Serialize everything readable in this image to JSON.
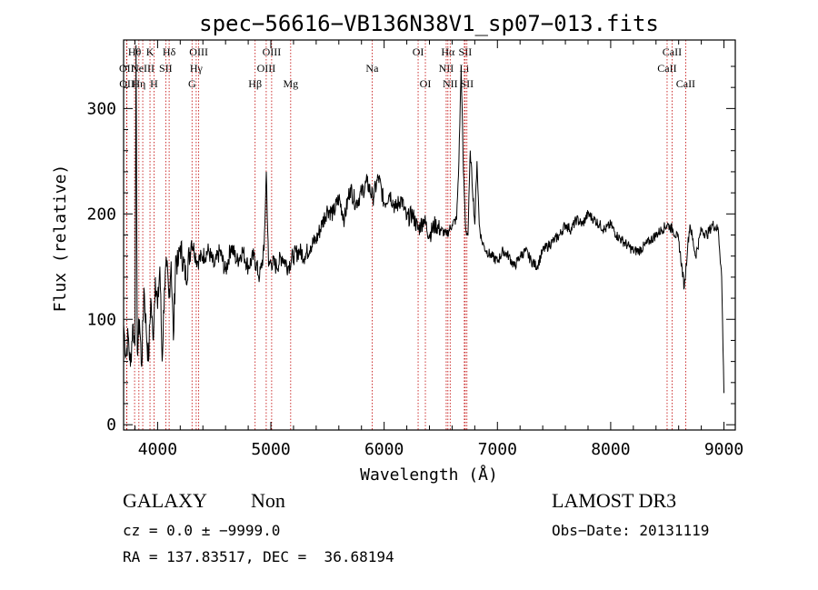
{
  "chart_data": {
    "type": "line",
    "title": "spec−56616−VB136N38V1_sp07−013.fits",
    "xlabel": "Wavelength (Å)",
    "ylabel": "Flux (relative)",
    "xlim": [
      3700,
      9100
    ],
    "ylim": [
      -5,
      365
    ],
    "xticks": [
      4000,
      5000,
      6000,
      7000,
      8000,
      9000
    ],
    "yticks": [
      0,
      100,
      200,
      300
    ],
    "series": [
      {
        "name": "spectrum",
        "x": [
          3700,
          3720,
          3740,
          3760,
          3780,
          3800,
          3810,
          3820,
          3840,
          3860,
          3880,
          3900,
          3920,
          3940,
          3960,
          3980,
          4000,
          4020,
          4040,
          4060,
          4080,
          4100,
          4120,
          4140,
          4160,
          4180,
          4200,
          4250,
          4300,
          4350,
          4400,
          4450,
          4500,
          4550,
          4600,
          4650,
          4700,
          4750,
          4800,
          4850,
          4900,
          4940,
          4960,
          4980,
          5000,
          5050,
          5100,
          5150,
          5200,
          5250,
          5300,
          5350,
          5400,
          5450,
          5500,
          5550,
          5600,
          5650,
          5700,
          5750,
          5800,
          5850,
          5900,
          5950,
          6000,
          6050,
          6100,
          6150,
          6200,
          6250,
          6300,
          6350,
          6400,
          6450,
          6500,
          6550,
          6600,
          6640,
          6660,
          6680,
          6700,
          6720,
          6740,
          6760,
          6800,
          6820,
          6840,
          6860,
          6880,
          6900,
          6950,
          7000,
          7050,
          7100,
          7150,
          7200,
          7250,
          7300,
          7350,
          7400,
          7450,
          7500,
          7550,
          7600,
          7650,
          7700,
          7750,
          7800,
          7850,
          7900,
          7950,
          8000,
          8050,
          8100,
          8150,
          8200,
          8250,
          8300,
          8350,
          8400,
          8450,
          8500,
          8550,
          8600,
          8650,
          8680,
          8700,
          8750,
          8800,
          8850,
          8900,
          8950,
          8980,
          9000
        ],
        "y": [
          95,
          65,
          85,
          55,
          95,
          75,
          360,
          70,
          100,
          55,
          130,
          90,
          60,
          120,
          80,
          140,
          110,
          150,
          60,
          130,
          150,
          120,
          155,
          80,
          160,
          150,
          170,
          140,
          175,
          155,
          160,
          165,
          150,
          165,
          145,
          170,
          155,
          165,
          150,
          160,
          140,
          165,
          240,
          150,
          155,
          150,
          160,
          150,
          160,
          165,
          160,
          170,
          175,
          190,
          205,
          200,
          215,
          195,
          225,
          210,
          220,
          230,
          215,
          235,
          210,
          220,
          205,
          215,
          195,
          200,
          185,
          195,
          180,
          190,
          185,
          180,
          190,
          195,
          250,
          340,
          240,
          185,
          180,
          260,
          190,
          250,
          190,
          175,
          170,
          165,
          160,
          155,
          165,
          160,
          150,
          160,
          165,
          155,
          150,
          165,
          170,
          175,
          180,
          190,
          185,
          195,
          190,
          200,
          195,
          190,
          185,
          190,
          180,
          175,
          170,
          165,
          165,
          170,
          175,
          180,
          185,
          190,
          185,
          175,
          130,
          170,
          190,
          160,
          185,
          180,
          190,
          185,
          140,
          30
        ]
      }
    ],
    "lines": [
      {
        "x": 3727,
        "label": "OII",
        "row": 1
      },
      {
        "x": 3729,
        "label": "OII",
        "row": 2
      },
      {
        "x": 3797,
        "label": "Hθ",
        "row": 0
      },
      {
        "x": 3835,
        "label": "Hη",
        "row": 2
      },
      {
        "x": 3869,
        "label": "NeIII",
        "row": 1
      },
      {
        "x": 3933,
        "label": "K",
        "row": 0
      },
      {
        "x": 3968,
        "label": "H",
        "row": 2
      },
      {
        "x": 4102,
        "label": "Hδ",
        "row": 0
      },
      {
        "x": 4072,
        "label": "SII",
        "row": 1
      },
      {
        "x": 4304,
        "label": "G",
        "row": 2
      },
      {
        "x": 4341,
        "label": "Hγ",
        "row": 1
      },
      {
        "x": 4363,
        "label": "OIII",
        "row": 0
      },
      {
        "x": 4861,
        "label": "Hβ",
        "row": 2
      },
      {
        "x": 4959,
        "label": "OIII",
        "row": 1
      },
      {
        "x": 5007,
        "label": "OIII",
        "row": 0
      },
      {
        "x": 5175,
        "label": "Mg",
        "row": 2
      },
      {
        "x": 5894,
        "label": "Na",
        "row": 1
      },
      {
        "x": 6300,
        "label": "OI",
        "row": 0
      },
      {
        "x": 6364,
        "label": "OI",
        "row": 2
      },
      {
        "x": 6548,
        "label": "NII",
        "row": 1
      },
      {
        "x": 6563,
        "label": "Hα",
        "row": 0
      },
      {
        "x": 6583,
        "label": "NII",
        "row": 2
      },
      {
        "x": 6708,
        "label": "Li",
        "row": 1
      },
      {
        "x": 6716,
        "label": "SII",
        "row": 0
      },
      {
        "x": 6731,
        "label": "SII",
        "row": 2
      },
      {
        "x": 8498,
        "label": "CaII",
        "row": 1
      },
      {
        "x": 8542,
        "label": "CaII",
        "row": 0
      },
      {
        "x": 8662,
        "label": "CaII",
        "row": 2
      }
    ],
    "legend": "none"
  },
  "footer": {
    "class_label": "GALAXY",
    "subclass_label": "Non",
    "survey_label": "LAMOST DR3",
    "cz_text": "cz = 0.0 ± −9999.0",
    "obs_date_text": "Obs−Date: 20131119",
    "coords_text": "RA = 137.83517, DEC =  36.68194"
  }
}
